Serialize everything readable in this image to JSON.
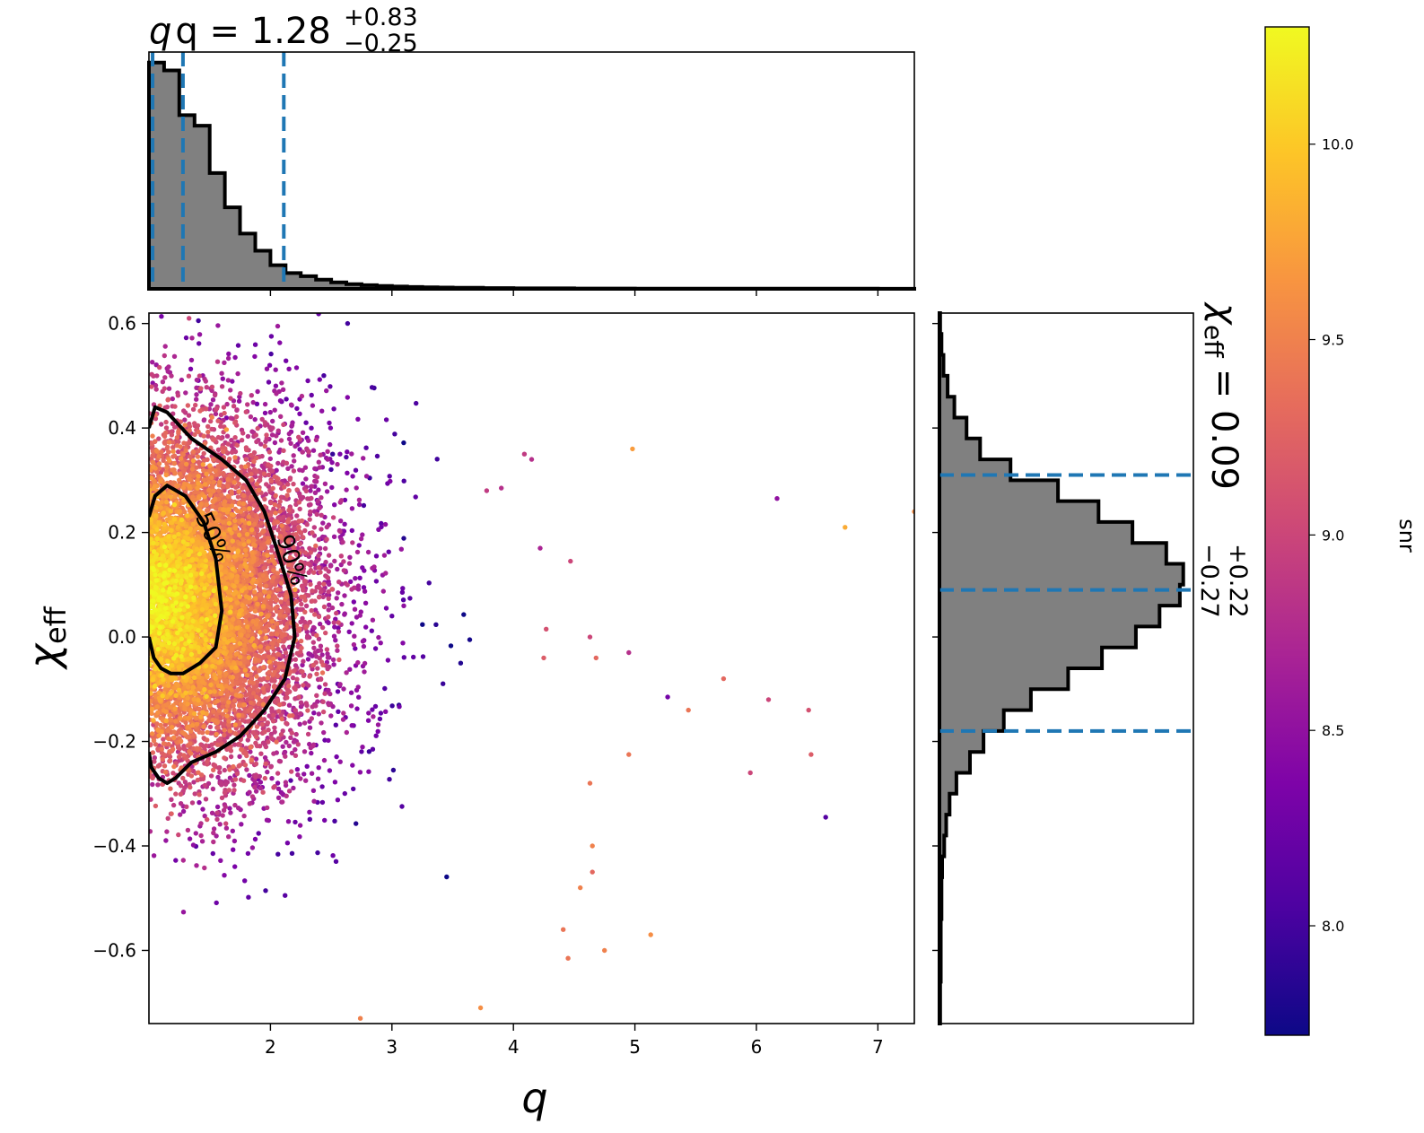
{
  "chart_data": [
    {
      "panel": "joint",
      "type": "scatter",
      "xlabel": "q",
      "ylabel": "χ",
      "ylabel_sub": "eff",
      "xlim": [
        1.0,
        7.3
      ],
      "ylim": [
        -0.74,
        0.62
      ],
      "xticks": [
        2,
        3,
        4,
        5,
        6,
        7
      ],
      "xtick_labels": [
        "2",
        "3",
        "4",
        "5",
        "6",
        "7"
      ],
      "yticks": [
        -0.6,
        -0.4,
        -0.2,
        0.0,
        0.2,
        0.4,
        0.6
      ],
      "ytick_labels": [
        "−0.6",
        "−0.4",
        "−0.2",
        "0.0",
        "0.2",
        "0.4",
        "0.6"
      ],
      "color_by": "snr",
      "outlier_points": [
        [
          4.98,
          0.36,
          9.7
        ],
        [
          6.17,
          0.265,
          8.5
        ],
        [
          6.73,
          0.21,
          9.8
        ],
        [
          7.3,
          0.24,
          9.6
        ],
        [
          5.27,
          -0.115,
          8.3
        ],
        [
          5.44,
          -0.14,
          9.4
        ],
        [
          5.73,
          -0.08,
          9.3
        ],
        [
          6.1,
          -0.12,
          9.0
        ],
        [
          6.43,
          -0.14,
          9.1
        ],
        [
          5.95,
          -0.26,
          9.0
        ],
        [
          6.57,
          -0.345,
          8.1
        ],
        [
          6.45,
          -0.225,
          9.2
        ],
        [
          4.95,
          -0.225,
          9.4
        ],
        [
          4.68,
          -0.04,
          9.3
        ],
        [
          4.95,
          -0.03,
          8.8
        ],
        [
          4.25,
          -0.04,
          9.2
        ],
        [
          4.63,
          0.0,
          9.0
        ],
        [
          4.27,
          0.015,
          9.1
        ],
        [
          4.63,
          -0.28,
          9.4
        ],
        [
          4.65,
          -0.4,
          9.5
        ],
        [
          5.13,
          -0.57,
          9.6
        ],
        [
          4.75,
          -0.6,
          9.5
        ],
        [
          4.41,
          -0.56,
          9.4
        ],
        [
          4.45,
          -0.615,
          9.4
        ],
        [
          3.73,
          -0.71,
          9.6
        ],
        [
          2.74,
          -0.73,
          9.5
        ],
        [
          4.15,
          0.34,
          8.8
        ],
        [
          4.09,
          0.35,
          8.9
        ],
        [
          3.78,
          0.28,
          8.9
        ],
        [
          4.47,
          0.145,
          9.0
        ],
        [
          4.22,
          0.17,
          8.7
        ],
        [
          3.9,
          0.285,
          8.8
        ],
        [
          2.06,
          0.595,
          8.6
        ],
        [
          1.33,
          0.61,
          9.0
        ],
        [
          4.65,
          -0.45,
          9.3
        ],
        [
          4.55,
          -0.48,
          9.5
        ]
      ],
      "contours": [
        {
          "label": "50%",
          "q": [
            1.0,
            1.05,
            1.15,
            1.3,
            1.45,
            1.55,
            1.6,
            1.55,
            1.42,
            1.28,
            1.18,
            1.1,
            1.04,
            1.0
          ],
          "chi_eff": [
            0.23,
            0.27,
            0.29,
            0.27,
            0.22,
            0.15,
            0.05,
            -0.02,
            -0.05,
            -0.07,
            -0.07,
            -0.06,
            -0.04,
            0.0
          ]
        },
        {
          "label": "90%",
          "q": [
            1.0,
            1.05,
            1.15,
            1.35,
            1.6,
            1.8,
            1.95,
            2.05,
            2.17,
            2.2,
            2.12,
            1.95,
            1.75,
            1.55,
            1.35,
            1.22,
            1.15,
            1.08,
            1.02,
            1.0
          ],
          "chi_eff": [
            0.4,
            0.44,
            0.43,
            0.38,
            0.34,
            0.3,
            0.24,
            0.17,
            0.08,
            0.0,
            -0.08,
            -0.14,
            -0.19,
            -0.22,
            -0.24,
            -0.27,
            -0.28,
            -0.27,
            -0.25,
            -0.22
          ]
        }
      ]
    },
    {
      "panel": "top-marginal",
      "type": "histogram",
      "variable": "q",
      "title_main": "q = 1.28",
      "title_sup": "+0.83",
      "title_sub": "−0.25",
      "bin_edges": [
        1.0,
        1.125,
        1.25,
        1.375,
        1.5,
        1.625,
        1.75,
        1.875,
        2.0,
        2.125,
        2.25,
        2.375,
        2.5,
        2.625,
        2.75,
        2.875,
        3.0,
        3.125,
        3.25,
        3.375,
        3.5,
        3.75,
        4.0,
        4.5,
        5.0,
        5.5,
        6.0,
        6.5,
        7.0,
        7.3
      ],
      "density": [
        0.86,
        0.83,
        0.66,
        0.62,
        0.44,
        0.31,
        0.21,
        0.145,
        0.09,
        0.06,
        0.048,
        0.035,
        0.025,
        0.018,
        0.014,
        0.011,
        0.009,
        0.007,
        0.006,
        0.005,
        0.004,
        0.003,
        0.002,
        0.0015,
        0.001,
        0.001,
        0.0008,
        0.0006,
        0.0005
      ],
      "ylim": [
        0,
        0.9
      ],
      "quantile_lines": [
        1.03,
        1.28,
        2.11
      ]
    },
    {
      "panel": "right-marginal",
      "type": "histogram",
      "orientation": "horizontal",
      "variable": "chi_eff",
      "title_main": "χ",
      "title_main_sub": "eff",
      "title_value": " = 0.09",
      "title_sup": "+0.22",
      "title_sub": "−0.27",
      "bin_edges": [
        -0.74,
        -0.7,
        -0.66,
        -0.62,
        -0.58,
        -0.54,
        -0.5,
        -0.46,
        -0.42,
        -0.38,
        -0.34,
        -0.3,
        -0.26,
        -0.22,
        -0.18,
        -0.14,
        -0.1,
        -0.06,
        -0.02,
        0.02,
        0.06,
        0.1,
        0.14,
        0.18,
        0.22,
        0.26,
        0.3,
        0.34,
        0.38,
        0.42,
        0.46,
        0.5,
        0.54,
        0.58,
        0.62
      ],
      "density": [
        0.01,
        0.01,
        0.02,
        0.02,
        0.02,
        0.03,
        0.03,
        0.04,
        0.07,
        0.1,
        0.15,
        0.25,
        0.45,
        0.65,
        0.95,
        1.35,
        1.9,
        2.4,
        2.9,
        3.25,
        3.55,
        3.6,
        3.35,
        2.85,
        2.35,
        1.75,
        1.05,
        0.6,
        0.4,
        0.22,
        0.12,
        0.06,
        0.03,
        0.01
      ],
      "xlim": [
        0,
        3.75
      ],
      "quantile_lines": [
        -0.18,
        0.09,
        0.31
      ]
    },
    {
      "panel": "colorbar",
      "type": "colorbar",
      "label": "snr",
      "colormap": "plasma",
      "range": [
        7.72,
        10.3
      ],
      "ticks": [
        8.0,
        8.5,
        9.0,
        9.5,
        10.0
      ],
      "tick_labels": [
        "8.0",
        "8.5",
        "9.0",
        "9.5",
        "10.0"
      ]
    }
  ],
  "colors": {
    "quantile": "#1f77b4",
    "hist_fill": "#808080",
    "hist_edge": "#000000",
    "contour": "#000000"
  }
}
